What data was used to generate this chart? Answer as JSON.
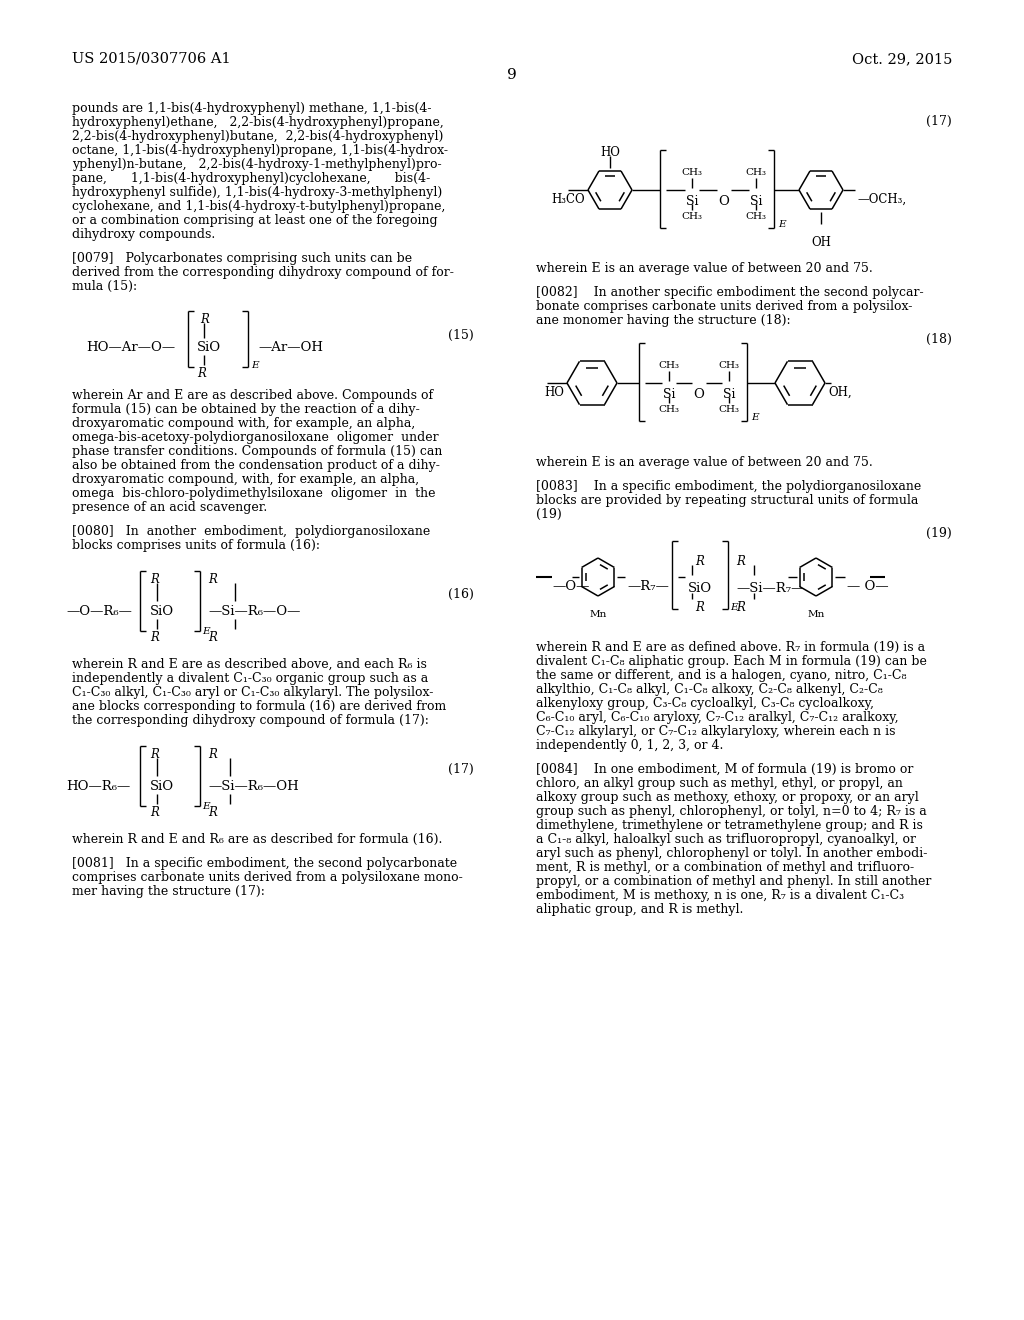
{
  "page_header_left": "US 2015/0307706 A1",
  "page_header_right": "Oct. 29, 2015",
  "page_number": "9",
  "background_color": "#ffffff"
}
